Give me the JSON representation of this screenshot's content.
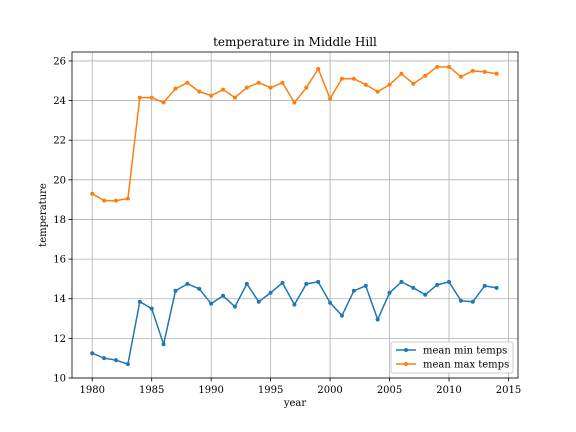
{
  "chart_data": {
    "type": "line",
    "title": "temperature in Middle Hill",
    "xlabel": "year",
    "ylabel": "temperature",
    "xlim": [
      1978.3,
      2015.8
    ],
    "ylim": [
      10,
      26.45
    ],
    "xticks": [
      1980,
      1985,
      1990,
      1995,
      2000,
      2005,
      2010,
      2015
    ],
    "yticks": [
      10,
      12,
      14,
      16,
      18,
      20,
      22,
      24,
      26
    ],
    "grid": true,
    "legend_position": "lower-right",
    "x": [
      1980,
      1981,
      1982,
      1983,
      1984,
      1985,
      1986,
      1987,
      1988,
      1989,
      1990,
      1991,
      1992,
      1993,
      1994,
      1995,
      1996,
      1997,
      1998,
      1999,
      2000,
      2001,
      2002,
      2003,
      2004,
      2005,
      2006,
      2007,
      2008,
      2009,
      2010,
      2011,
      2012,
      2013,
      2014
    ],
    "series": [
      {
        "name": "mean min temps",
        "color": "#1f77b4",
        "values": [
          11.25,
          11.0,
          10.9,
          10.7,
          13.85,
          13.5,
          11.7,
          14.4,
          14.75,
          14.5,
          13.75,
          14.15,
          13.6,
          14.75,
          13.85,
          14.3,
          14.8,
          13.7,
          14.75,
          14.85,
          13.8,
          13.15,
          14.4,
          14.65,
          12.95,
          14.3,
          14.85,
          14.55,
          14.2,
          14.7,
          14.85,
          13.9,
          13.85,
          14.65,
          14.55
        ]
      },
      {
        "name": "mean max temps",
        "color": "#ff7f0e",
        "values": [
          19.3,
          18.95,
          18.95,
          19.05,
          24.15,
          24.15,
          23.9,
          24.6,
          24.9,
          24.45,
          24.25,
          24.55,
          24.15,
          24.65,
          24.9,
          24.65,
          24.9,
          23.9,
          24.65,
          25.6,
          24.1,
          25.1,
          25.1,
          24.8,
          24.45,
          24.8,
          25.35,
          24.85,
          25.25,
          25.7,
          25.7,
          25.2,
          25.5,
          25.45,
          25.35
        ]
      }
    ]
  }
}
